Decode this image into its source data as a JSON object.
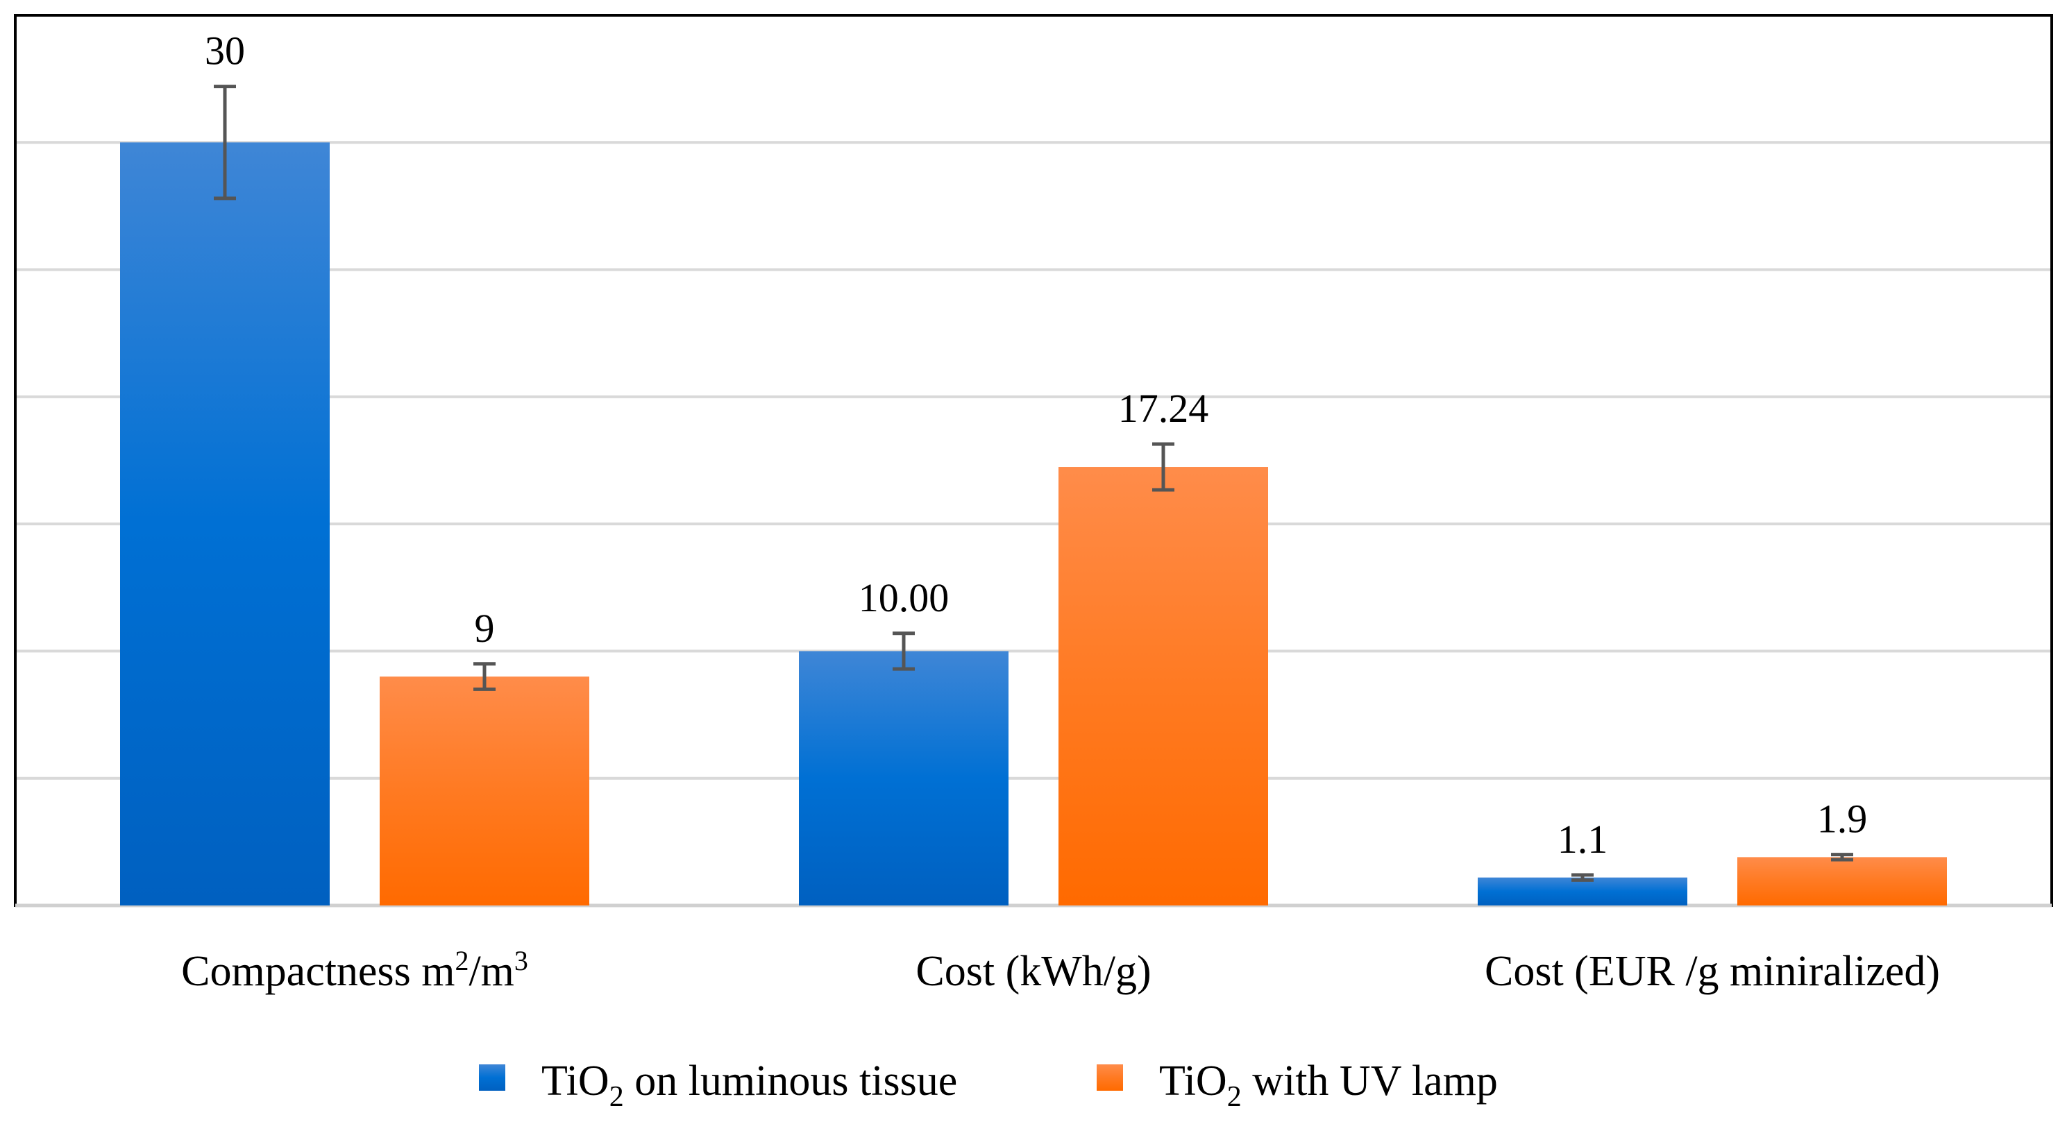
{
  "chart_data": {
    "type": "bar",
    "categories": [
      {
        "text": "Compactness m",
        "sup1": "2",
        "mid": "/m",
        "sup2": "3"
      },
      {
        "text": "Cost (kWh/g)"
      },
      {
        "text": "Cost (EUR /g miniralized)"
      }
    ],
    "series": [
      {
        "name_parts": {
          "pre": "TiO",
          "sub": "2",
          "post": " on luminous tissue"
        },
        "color": "#0070d0",
        "values": [
          30,
          10.0,
          1.1
        ],
        "value_labels": [
          "30",
          "10.00",
          "1.1"
        ],
        "errors": [
          2.2,
          0.7,
          0.1
        ]
      },
      {
        "name_parts": {
          "pre": "TiO",
          "sub": "2",
          "post": " with UV lamp"
        },
        "color": "#ff7a1a",
        "values": [
          9,
          17.24,
          1.9
        ],
        "value_labels": [
          "9",
          "17.24",
          "1.9"
        ],
        "errors": [
          0.5,
          0.9,
          0.1
        ]
      }
    ],
    "ylim": [
      0,
      35
    ],
    "grid": true,
    "legend": "bottom",
    "title": "",
    "xlabel": "",
    "ylabel": ""
  }
}
